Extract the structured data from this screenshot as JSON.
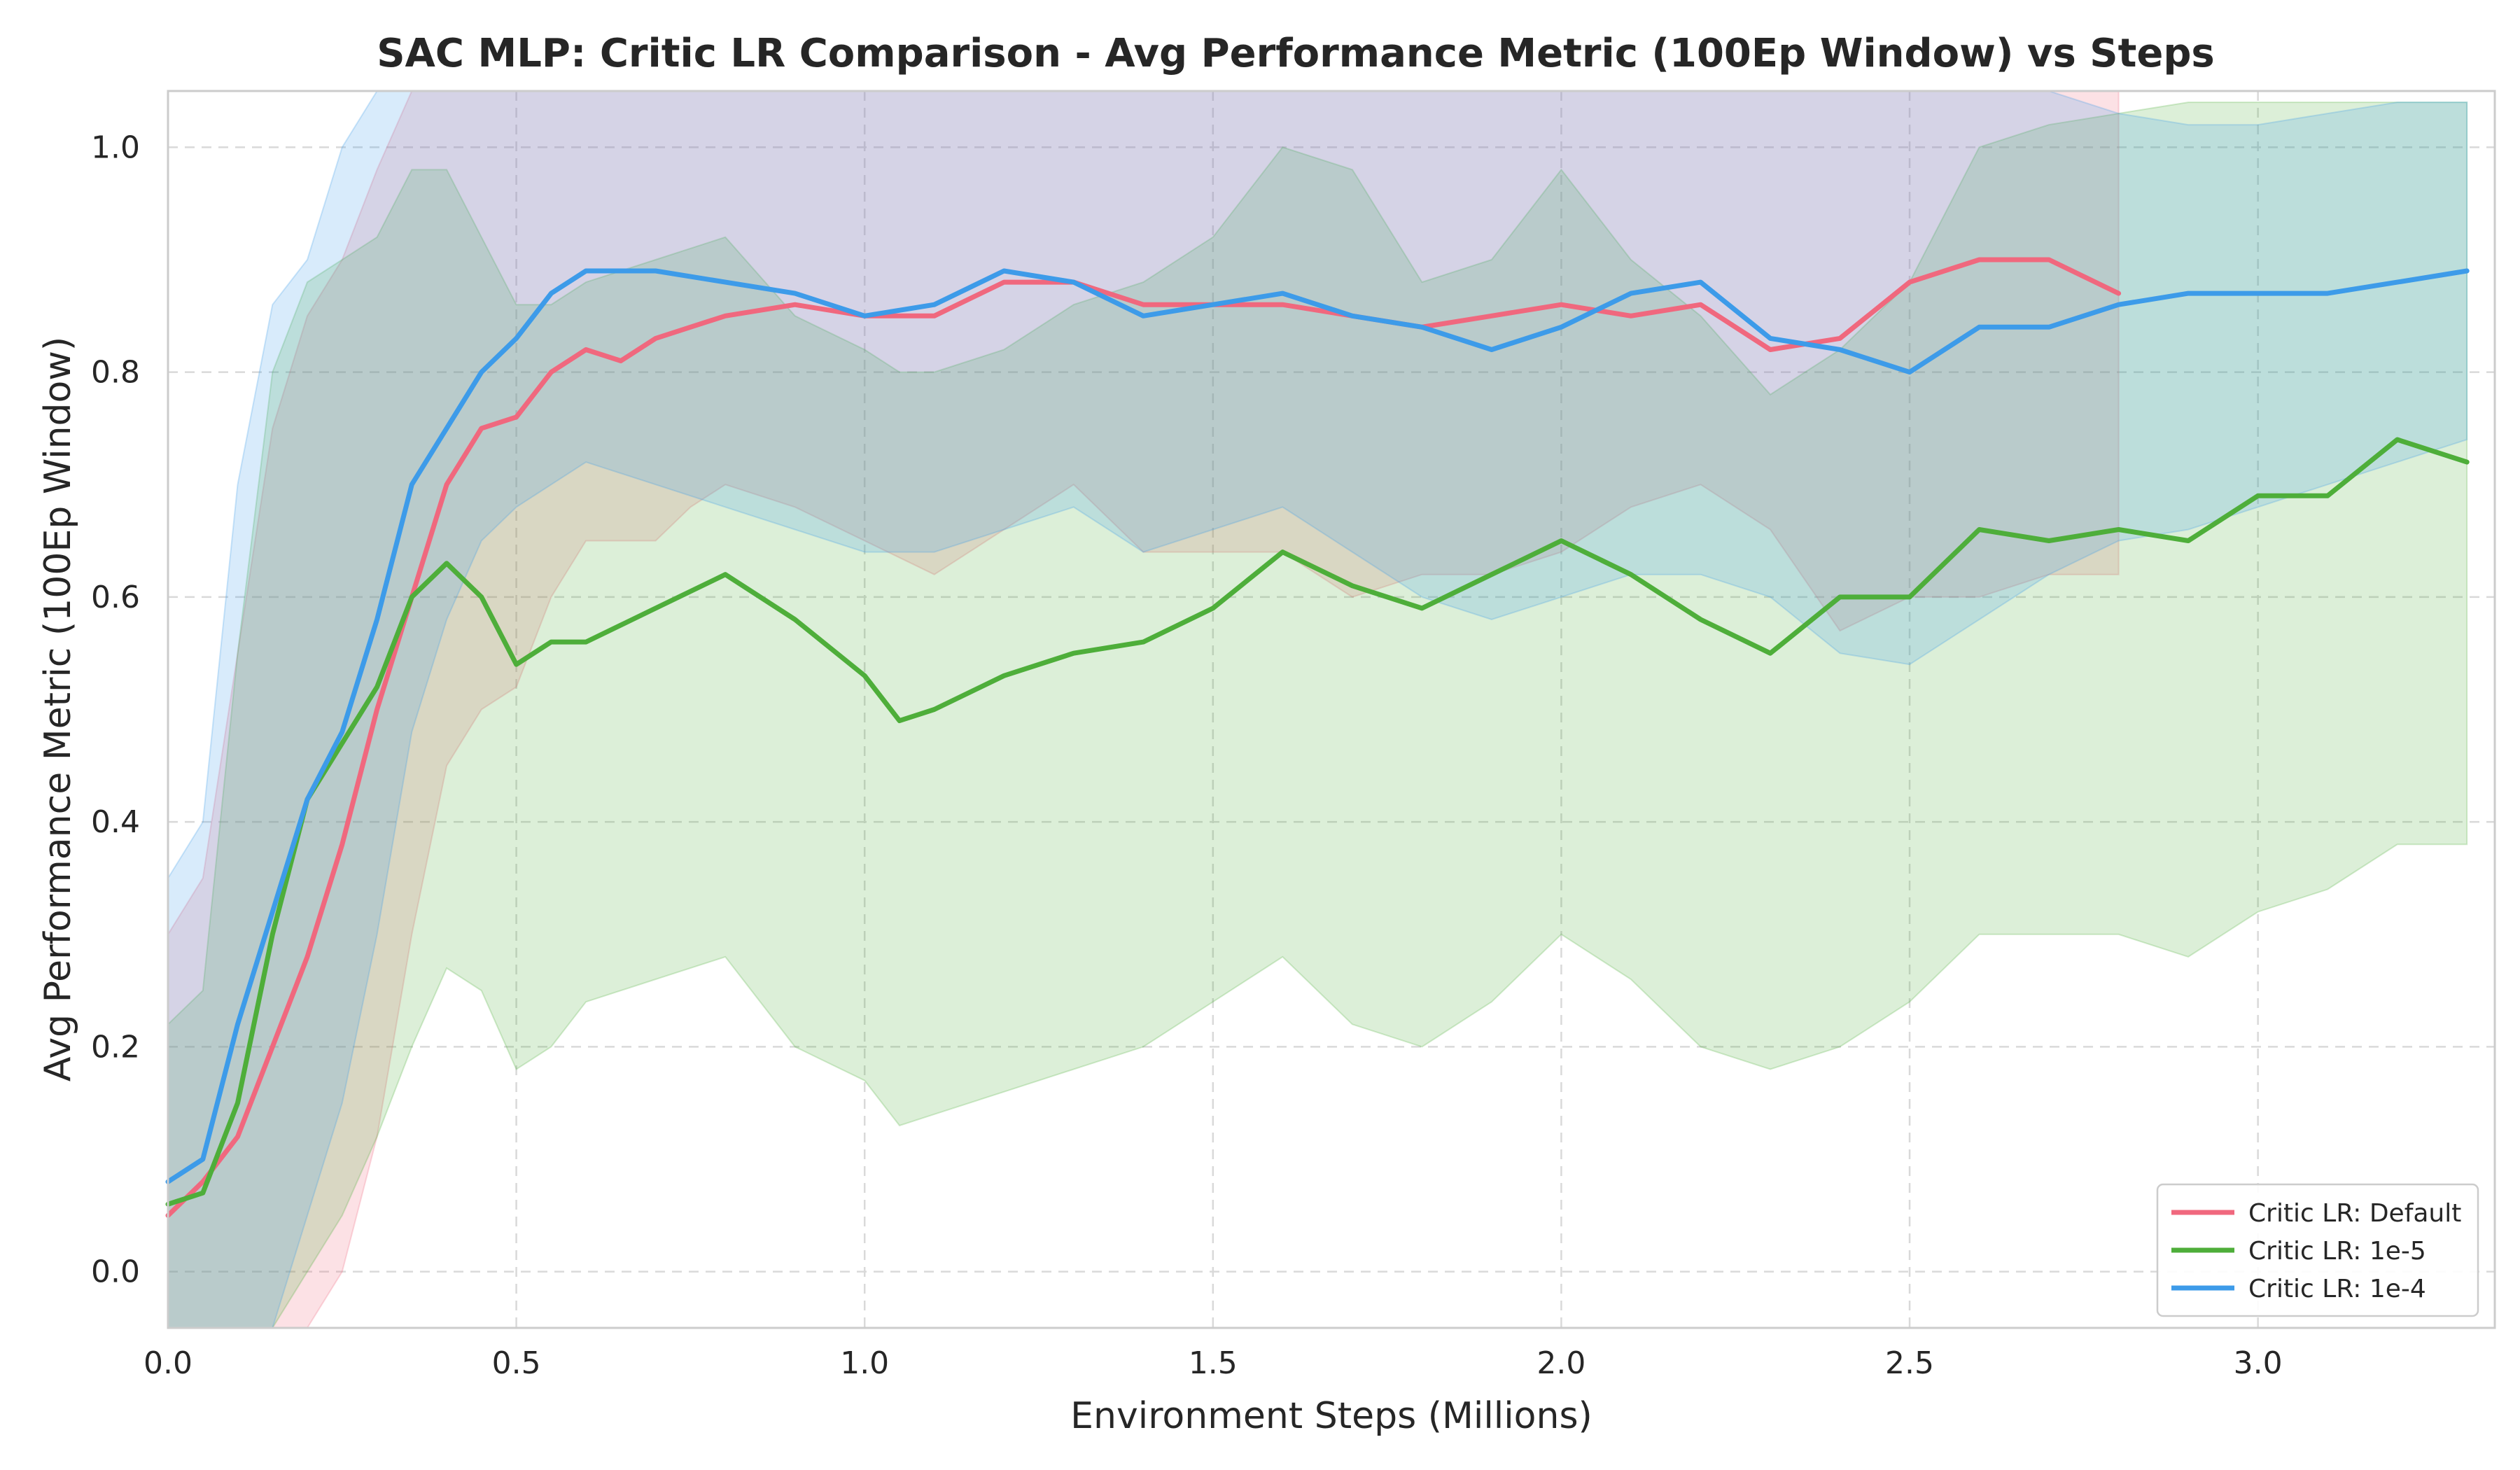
{
  "chart_data": {
    "type": "line",
    "title": "SAC MLP: Critic LR Comparison - Avg Performance Metric (100Ep Window) vs Steps",
    "xlabel": "Environment Steps (Millions)",
    "ylabel": "Avg Performance Metric (100Ep Window)",
    "xlim": [
      0.0,
      3.34
    ],
    "ylim": [
      -0.05,
      1.05
    ],
    "xticks": [
      0.0,
      0.5,
      1.0,
      1.5,
      2.0,
      2.5,
      3.0
    ],
    "xtick_labels": [
      "0.0",
      "0.5",
      "1.0",
      "1.5",
      "2.0",
      "2.5",
      "3.0"
    ],
    "yticks": [
      0.0,
      0.2,
      0.4,
      0.6,
      0.8,
      1.0
    ],
    "ytick_labels": [
      "0.0",
      "0.2",
      "0.4",
      "0.6",
      "0.8",
      "1.0"
    ],
    "grid": true,
    "legend_position": "lower-right",
    "series": [
      {
        "name": "Critic LR: Default",
        "color": "#f0687e",
        "x": [
          0.0,
          0.05,
          0.1,
          0.15,
          0.2,
          0.25,
          0.3,
          0.35,
          0.4,
          0.45,
          0.5,
          0.55,
          0.6,
          0.65,
          0.7,
          0.75,
          0.8,
          0.9,
          1.0,
          1.1,
          1.2,
          1.3,
          1.4,
          1.5,
          1.6,
          1.7,
          1.8,
          1.9,
          2.0,
          2.1,
          2.2,
          2.3,
          2.4,
          2.5,
          2.6,
          2.7,
          2.8
        ],
        "y": [
          0.05,
          0.08,
          0.12,
          0.2,
          0.28,
          0.38,
          0.5,
          0.6,
          0.7,
          0.75,
          0.76,
          0.8,
          0.82,
          0.81,
          0.83,
          0.84,
          0.85,
          0.86,
          0.85,
          0.85,
          0.88,
          0.88,
          0.86,
          0.86,
          0.86,
          0.85,
          0.84,
          0.85,
          0.86,
          0.85,
          0.86,
          0.82,
          0.83,
          0.88,
          0.9,
          0.9,
          0.87
        ],
        "band_upper": [
          0.3,
          0.35,
          0.55,
          0.75,
          0.85,
          0.9,
          0.98,
          1.05,
          1.05,
          1.05,
          1.05,
          1.05,
          1.05,
          1.05,
          1.05,
          1.05,
          1.05,
          1.05,
          1.05,
          1.05,
          1.05,
          1.05,
          1.05,
          1.05,
          1.05,
          1.05,
          1.05,
          1.05,
          1.05,
          1.05,
          1.05,
          1.05,
          1.05,
          1.05,
          1.05,
          1.05,
          1.05
        ],
        "band_lower": [
          -0.05,
          -0.05,
          -0.05,
          -0.05,
          -0.05,
          0.0,
          0.12,
          0.3,
          0.45,
          0.5,
          0.52,
          0.6,
          0.65,
          0.65,
          0.65,
          0.68,
          0.7,
          0.68,
          0.65,
          0.62,
          0.66,
          0.7,
          0.64,
          0.64,
          0.64,
          0.6,
          0.62,
          0.62,
          0.64,
          0.68,
          0.7,
          0.66,
          0.57,
          0.6,
          0.6,
          0.62,
          0.62
        ]
      },
      {
        "name": "Critic LR: 1e-5",
        "color": "#4eae3a",
        "x": [
          0.0,
          0.05,
          0.1,
          0.15,
          0.2,
          0.25,
          0.3,
          0.35,
          0.4,
          0.45,
          0.5,
          0.55,
          0.6,
          0.7,
          0.8,
          0.9,
          1.0,
          1.05,
          1.1,
          1.2,
          1.3,
          1.4,
          1.5,
          1.6,
          1.7,
          1.8,
          1.9,
          2.0,
          2.1,
          2.2,
          2.3,
          2.4,
          2.5,
          2.6,
          2.7,
          2.8,
          2.9,
          3.0,
          3.1,
          3.2,
          3.3
        ],
        "y": [
          0.06,
          0.07,
          0.15,
          0.3,
          0.42,
          0.47,
          0.52,
          0.6,
          0.63,
          0.6,
          0.54,
          0.56,
          0.56,
          0.59,
          0.62,
          0.58,
          0.53,
          0.49,
          0.5,
          0.53,
          0.55,
          0.56,
          0.59,
          0.64,
          0.61,
          0.59,
          0.62,
          0.65,
          0.62,
          0.58,
          0.55,
          0.6,
          0.6,
          0.66,
          0.65,
          0.66,
          0.65,
          0.69,
          0.69,
          0.74,
          0.72
        ],
        "band_upper": [
          0.22,
          0.25,
          0.55,
          0.8,
          0.88,
          0.9,
          0.92,
          0.98,
          0.98,
          0.92,
          0.86,
          0.86,
          0.88,
          0.9,
          0.92,
          0.85,
          0.82,
          0.8,
          0.8,
          0.82,
          0.86,
          0.88,
          0.92,
          1.0,
          0.98,
          0.88,
          0.9,
          0.98,
          0.9,
          0.85,
          0.78,
          0.82,
          0.88,
          1.0,
          1.02,
          1.03,
          1.04,
          1.04,
          1.04,
          1.04,
          1.04
        ],
        "band_lower": [
          -0.05,
          -0.05,
          -0.05,
          -0.05,
          0.0,
          0.05,
          0.12,
          0.2,
          0.27,
          0.25,
          0.18,
          0.2,
          0.24,
          0.26,
          0.28,
          0.2,
          0.17,
          0.13,
          0.14,
          0.16,
          0.18,
          0.2,
          0.24,
          0.28,
          0.22,
          0.2,
          0.24,
          0.3,
          0.26,
          0.2,
          0.18,
          0.2,
          0.24,
          0.3,
          0.3,
          0.3,
          0.28,
          0.32,
          0.34,
          0.38,
          0.38
        ]
      },
      {
        "name": "Critic LR: 1e-4",
        "color": "#3d9be9",
        "x": [
          0.0,
          0.05,
          0.1,
          0.15,
          0.2,
          0.25,
          0.3,
          0.35,
          0.4,
          0.45,
          0.5,
          0.55,
          0.6,
          0.7,
          0.8,
          0.9,
          1.0,
          1.1,
          1.2,
          1.3,
          1.4,
          1.5,
          1.6,
          1.7,
          1.8,
          1.9,
          2.0,
          2.1,
          2.2,
          2.3,
          2.4,
          2.5,
          2.6,
          2.7,
          2.8,
          2.9,
          3.0,
          3.1,
          3.2,
          3.3
        ],
        "y": [
          0.08,
          0.1,
          0.22,
          0.32,
          0.42,
          0.48,
          0.58,
          0.7,
          0.75,
          0.8,
          0.83,
          0.87,
          0.89,
          0.89,
          0.88,
          0.87,
          0.85,
          0.86,
          0.89,
          0.88,
          0.85,
          0.86,
          0.87,
          0.85,
          0.84,
          0.82,
          0.84,
          0.87,
          0.88,
          0.83,
          0.82,
          0.8,
          0.84,
          0.84,
          0.86,
          0.87,
          0.87,
          0.87,
          0.88,
          0.89
        ],
        "band_upper": [
          0.35,
          0.4,
          0.7,
          0.86,
          0.9,
          1.0,
          1.05,
          1.05,
          1.05,
          1.05,
          1.05,
          1.05,
          1.05,
          1.05,
          1.05,
          1.05,
          1.05,
          1.05,
          1.05,
          1.05,
          1.05,
          1.05,
          1.05,
          1.05,
          1.05,
          1.05,
          1.05,
          1.05,
          1.05,
          1.05,
          1.05,
          1.05,
          1.05,
          1.05,
          1.03,
          1.02,
          1.02,
          1.03,
          1.04,
          1.04
        ],
        "band_lower": [
          -0.05,
          -0.05,
          -0.05,
          -0.05,
          0.05,
          0.15,
          0.3,
          0.48,
          0.58,
          0.65,
          0.68,
          0.7,
          0.72,
          0.7,
          0.68,
          0.66,
          0.64,
          0.64,
          0.66,
          0.68,
          0.64,
          0.66,
          0.68,
          0.64,
          0.6,
          0.58,
          0.6,
          0.62,
          0.62,
          0.6,
          0.55,
          0.54,
          0.58,
          0.62,
          0.65,
          0.66,
          0.68,
          0.7,
          0.72,
          0.74
        ]
      }
    ]
  }
}
